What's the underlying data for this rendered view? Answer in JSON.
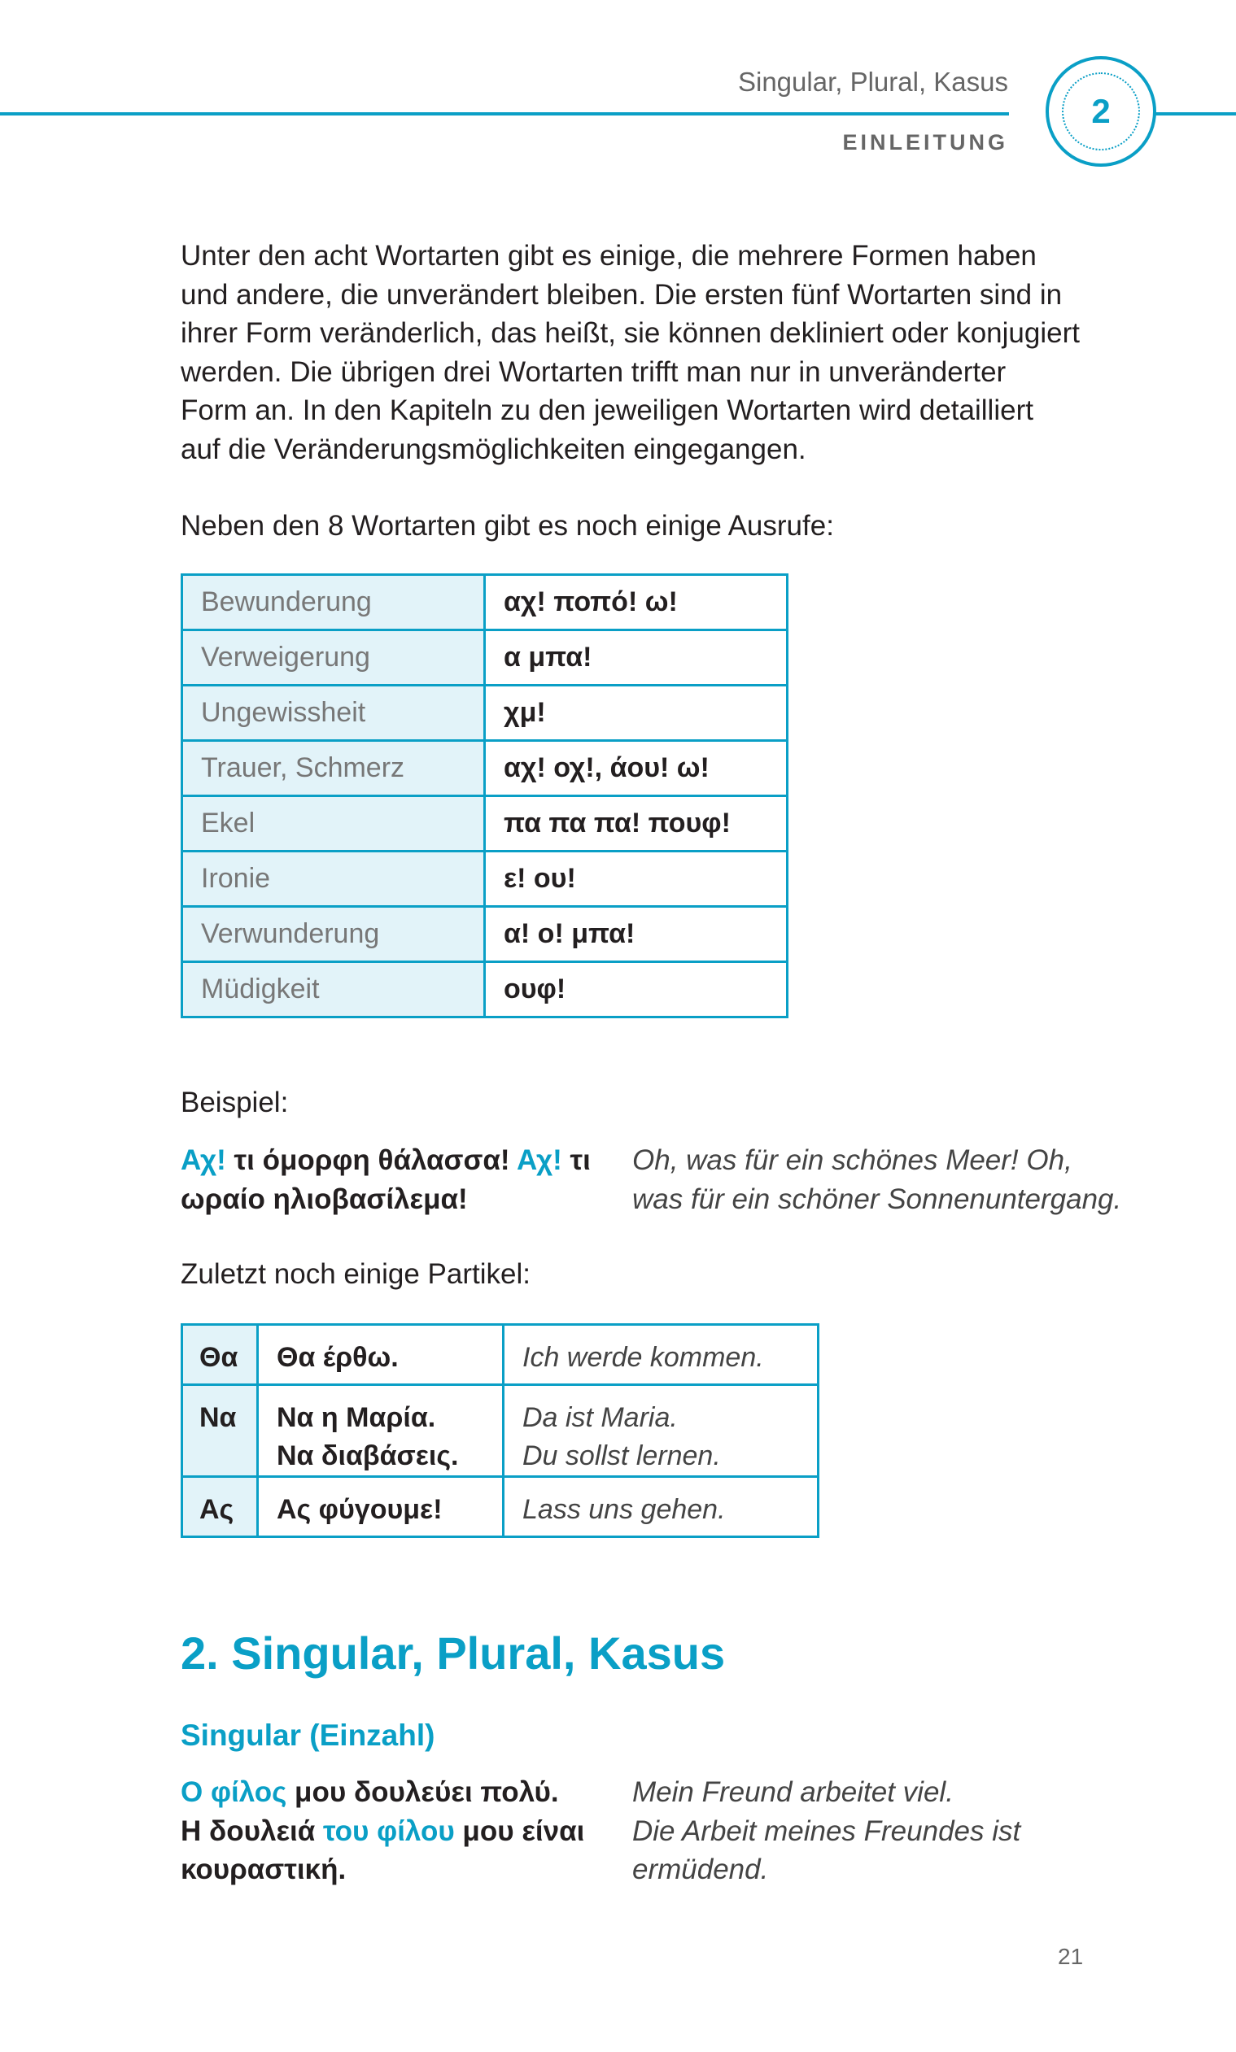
{
  "header": {
    "running_title": "Singular, Plural, Kasus",
    "section_label": "EINLEITUNG",
    "chapter_number": "2",
    "accent_color": "#0a9fc6"
  },
  "intro": {
    "lines": [
      "Unter den acht Wortarten gibt es einige, die mehrere Formen haben",
      "und andere, die unverändert bleiben. Die ersten fünf Wortarten sind in",
      "ihrer Form veränderlich, das heißt, sie können dekliniert oder konjugiert",
      "werden. Die übrigen drei Wortarten trifft man nur in unveränderter",
      "Form an. In den Kapiteln zu den jeweiligen Wortarten wird detailliert",
      "auf die Veränderungsmöglichkeiten eingegangen."
    ],
    "exclamations_intro": "Neben den 8 Wortarten gibt es noch einige Ausrufe:"
  },
  "exclamations_table": [
    {
      "label": "Bewunderung",
      "greek": "αχ! ποπό! ω!"
    },
    {
      "label": "Verweigerung",
      "greek": "α μπα!"
    },
    {
      "label": "Ungewissheit",
      "greek": "χμ!"
    },
    {
      "label": "Trauer, Schmerz",
      "greek": "αχ! οχ!, άου! ω!"
    },
    {
      "label": "Ekel",
      "greek": "πα πα πα! πουφ!"
    },
    {
      "label": "Ironie",
      "greek": "ε! ου!"
    },
    {
      "label": "Verwunderung",
      "greek": "α! ο! μπα!"
    },
    {
      "label": "Müdigkeit",
      "greek": "ουφ!"
    }
  ],
  "example1": {
    "label": "Beispiel:",
    "greek": {
      "hl1": "Αχ!",
      "t1": " τι όμορφη θάλασσα! ",
      "hl2": "Αχ!",
      "t2": " τι",
      "line2": "ωραίο ηλιοβασίλεμα!"
    },
    "german": [
      "Oh, was für ein schönes Meer! Oh,",
      "was für ein schöner Sonnenuntergang."
    ]
  },
  "particles": {
    "intro": "Zuletzt noch einige Partikel:",
    "rows": [
      {
        "particle": "Θα",
        "greek": [
          "Θα έρθω."
        ],
        "german": [
          "Ich werde kommen."
        ]
      },
      {
        "particle": "Να",
        "greek": [
          "Να η Μαρία.",
          "Να διαβάσεις."
        ],
        "german": [
          "Da ist Maria.",
          "Du sollst lernen."
        ]
      },
      {
        "particle": "Ας",
        "greek": [
          "Ας φύγουμε!"
        ],
        "german": [
          "Lass uns gehen."
        ]
      }
    ]
  },
  "section": {
    "heading": "2. Singular, Plural, Kasus",
    "subheading": "Singular (Einzahl)",
    "example": {
      "l1_hl": "Ο φίλος",
      "l1_rest": " μου δουλεύει πολύ.",
      "l2_a": "Η δουλειά ",
      "l2_hl": "του φίλου",
      "l2_b": " μου είναι",
      "l3": "κουραστική.",
      "german": [
        "Mein Freund arbeitet viel.",
        "Die Arbeit meines Freundes ist",
        "ermüdend."
      ]
    }
  },
  "page_number": "21"
}
